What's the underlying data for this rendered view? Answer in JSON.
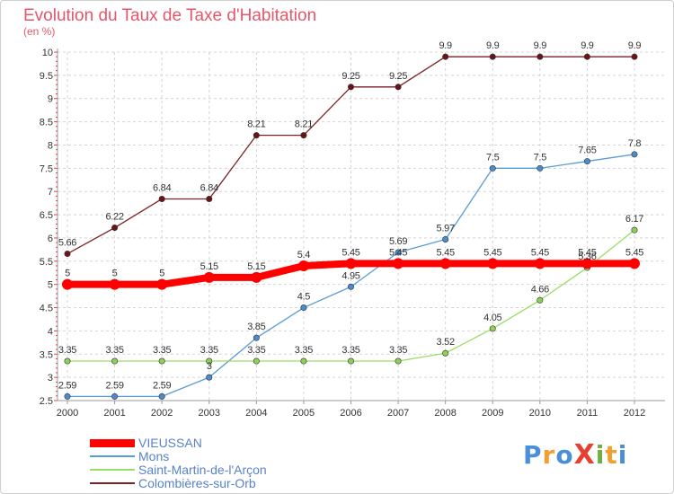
{
  "chart_data": {
    "type": "line",
    "title": "Evolution du Taux de Taxe d'Habitation",
    "unit_label": "(en %)",
    "categories": [
      "2000",
      "2001",
      "2002",
      "2003",
      "2004",
      "2005",
      "2006",
      "2007",
      "2008",
      "2009",
      "2010",
      "2011",
      "2012"
    ],
    "ylim": [
      2.5,
      10
    ],
    "yticks": [
      "2.5",
      "3",
      "3.5",
      "4",
      "4.5",
      "5",
      "5.5",
      "6",
      "6.5",
      "7",
      "7.5",
      "8",
      "8.5",
      "9",
      "9.5",
      "10"
    ],
    "grid": true,
    "legend_position": "bottom-left",
    "series": [
      {
        "name": "VIEUSSAN",
        "color": "#ff0000",
        "values": [
          5,
          5,
          5,
          5.15,
          5.15,
          5.4,
          5.45,
          5.45,
          5.45,
          5.45,
          5.45,
          5.45,
          5.45
        ],
        "labels": [
          "5",
          "5",
          "5",
          "5.15",
          "5.15",
          "5.4",
          "5.45",
          "5.45",
          "5.45",
          "5.45",
          "5.45",
          "5.45",
          "5.45"
        ]
      },
      {
        "name": "Mons",
        "color": "#5b9bd5",
        "values": [
          2.59,
          2.59,
          2.59,
          3,
          3.85,
          4.5,
          4.95,
          5.69,
          5.97,
          7.5,
          7.5,
          7.65,
          7.8
        ],
        "labels": [
          "2.59",
          "2.59",
          "2.59",
          "3",
          "3.85",
          "4.5",
          "4.95",
          "5.69",
          "5.97",
          "7.5",
          "7.5",
          "7.65",
          "7.8"
        ]
      },
      {
        "name": "Saint-Martin-de-l'Arçon",
        "color": "#99dd66",
        "values": [
          3.35,
          3.35,
          3.35,
          3.35,
          3.35,
          3.35,
          3.35,
          3.35,
          3.52,
          4.05,
          4.66,
          5.36,
          6.17
        ],
        "labels": [
          "3.35",
          "3.35",
          "3.35",
          "3.35",
          "3.35",
          "3.35",
          "3.35",
          "3.35",
          "3.52",
          "4.05",
          "4.66",
          "5.36",
          "6.17"
        ]
      },
      {
        "name": "Colombières-sur-Orb",
        "color": "#7a2226",
        "values": [
          5.66,
          6.22,
          6.84,
          6.84,
          8.21,
          8.21,
          9.25,
          9.25,
          9.9,
          9.9,
          9.9,
          9.9,
          9.9
        ],
        "labels": [
          "5.66",
          "6.22",
          "6.84",
          "6.84",
          "8.21",
          "8.21",
          "9.25",
          "9.25",
          "9.9",
          "9.9",
          "9.9",
          "9.9",
          "9.9"
        ]
      }
    ]
  },
  "logo": {
    "text": "ProXiti",
    "letters": [
      "P",
      "r",
      "o",
      "X",
      "i",
      "t",
      "i"
    ],
    "colors": [
      "#4a90d9",
      "#f0a030",
      "#4a90d9",
      "#e84030",
      "#70b040",
      "#f0a030",
      "#4a90d9"
    ]
  }
}
